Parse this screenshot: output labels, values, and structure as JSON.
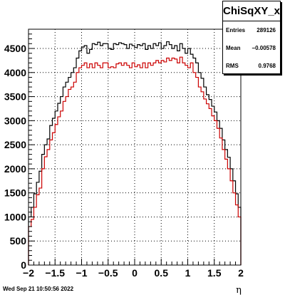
{
  "stats": {
    "title": "ChiSqXY_x",
    "entries_label": "Entries",
    "entries_value": "289126",
    "mean_label": "Mean",
    "mean_value": "−0.00578",
    "rms_label": "RMS",
    "rms_value": "0.9768"
  },
  "datestamp": "Wed Sep 21 10:50:56 2022",
  "colors": {
    "series_black": "#000000",
    "series_red": "#cc0000"
  },
  "chart_data": {
    "type": "histogram",
    "title": "",
    "xlabel": "η",
    "ylabel": "",
    "xlim": [
      -2.0,
      2.0
    ],
    "ylim": [
      0,
      4900
    ],
    "grid": true,
    "x_tick_labels": [
      "−2",
      "−1.5",
      "−1",
      "−0.5",
      "0",
      "0.5",
      "1",
      "1.5",
      "2"
    ],
    "y_tick_labels": [
      "0",
      "500",
      "1000",
      "1500",
      "2000",
      "2500",
      "3000",
      "3500",
      "4000",
      "4500"
    ],
    "bin_edges_start": -2.0,
    "bin_width": 0.05,
    "series": [
      {
        "color": "#000000",
        "values": [
          1000,
          1200,
          1480,
          1720,
          1950,
          2300,
          2500,
          2620,
          2900,
          3050,
          3200,
          3360,
          3500,
          3700,
          3800,
          3900,
          4000,
          4100,
          4300,
          4450,
          4530,
          4560,
          4400,
          4480,
          4600,
          4580,
          4630,
          4560,
          4600,
          4600,
          4500,
          4480,
          4600,
          4580,
          4620,
          4600,
          4580,
          4500,
          4590,
          4560,
          4520,
          4580,
          4560,
          4600,
          4480,
          4560,
          4500,
          4600,
          4560,
          4620,
          4500,
          4560,
          4640,
          4580,
          4500,
          4560,
          4450,
          4600,
          4500,
          4400,
          4500,
          4380,
          4300,
          4200,
          4000,
          3880,
          3700,
          3540,
          3440,
          3300,
          3180,
          3000,
          2840,
          2600,
          2400,
          2240,
          2000,
          1750,
          1480,
          1200
        ]
      },
      {
        "color": "#cc0000",
        "values": [
          800,
          950,
          1200,
          1460,
          1600,
          2000,
          2250,
          2400,
          2600,
          2750,
          2920,
          3080,
          3200,
          3400,
          3500,
          3650,
          3700,
          3800,
          4000,
          4100,
          4150,
          4200,
          4100,
          4180,
          4100,
          4200,
          4150,
          4100,
          4200,
          4200,
          4100,
          4120,
          4100,
          4180,
          4200,
          4150,
          4200,
          4150,
          4100,
          4200,
          4120,
          4160,
          4100,
          4200,
          4100,
          4200,
          4150,
          4200,
          4250,
          4200,
          4250,
          4220,
          4300,
          4250,
          4300,
          4280,
          4200,
          4320,
          4200,
          4150,
          4100,
          4200,
          4000,
          3900,
          3700,
          3600,
          3450,
          3350,
          3250,
          3100,
          3000,
          2840,
          2640,
          2400,
          2200,
          2000,
          1750,
          1500,
          1250,
          1000
        ]
      }
    ]
  }
}
